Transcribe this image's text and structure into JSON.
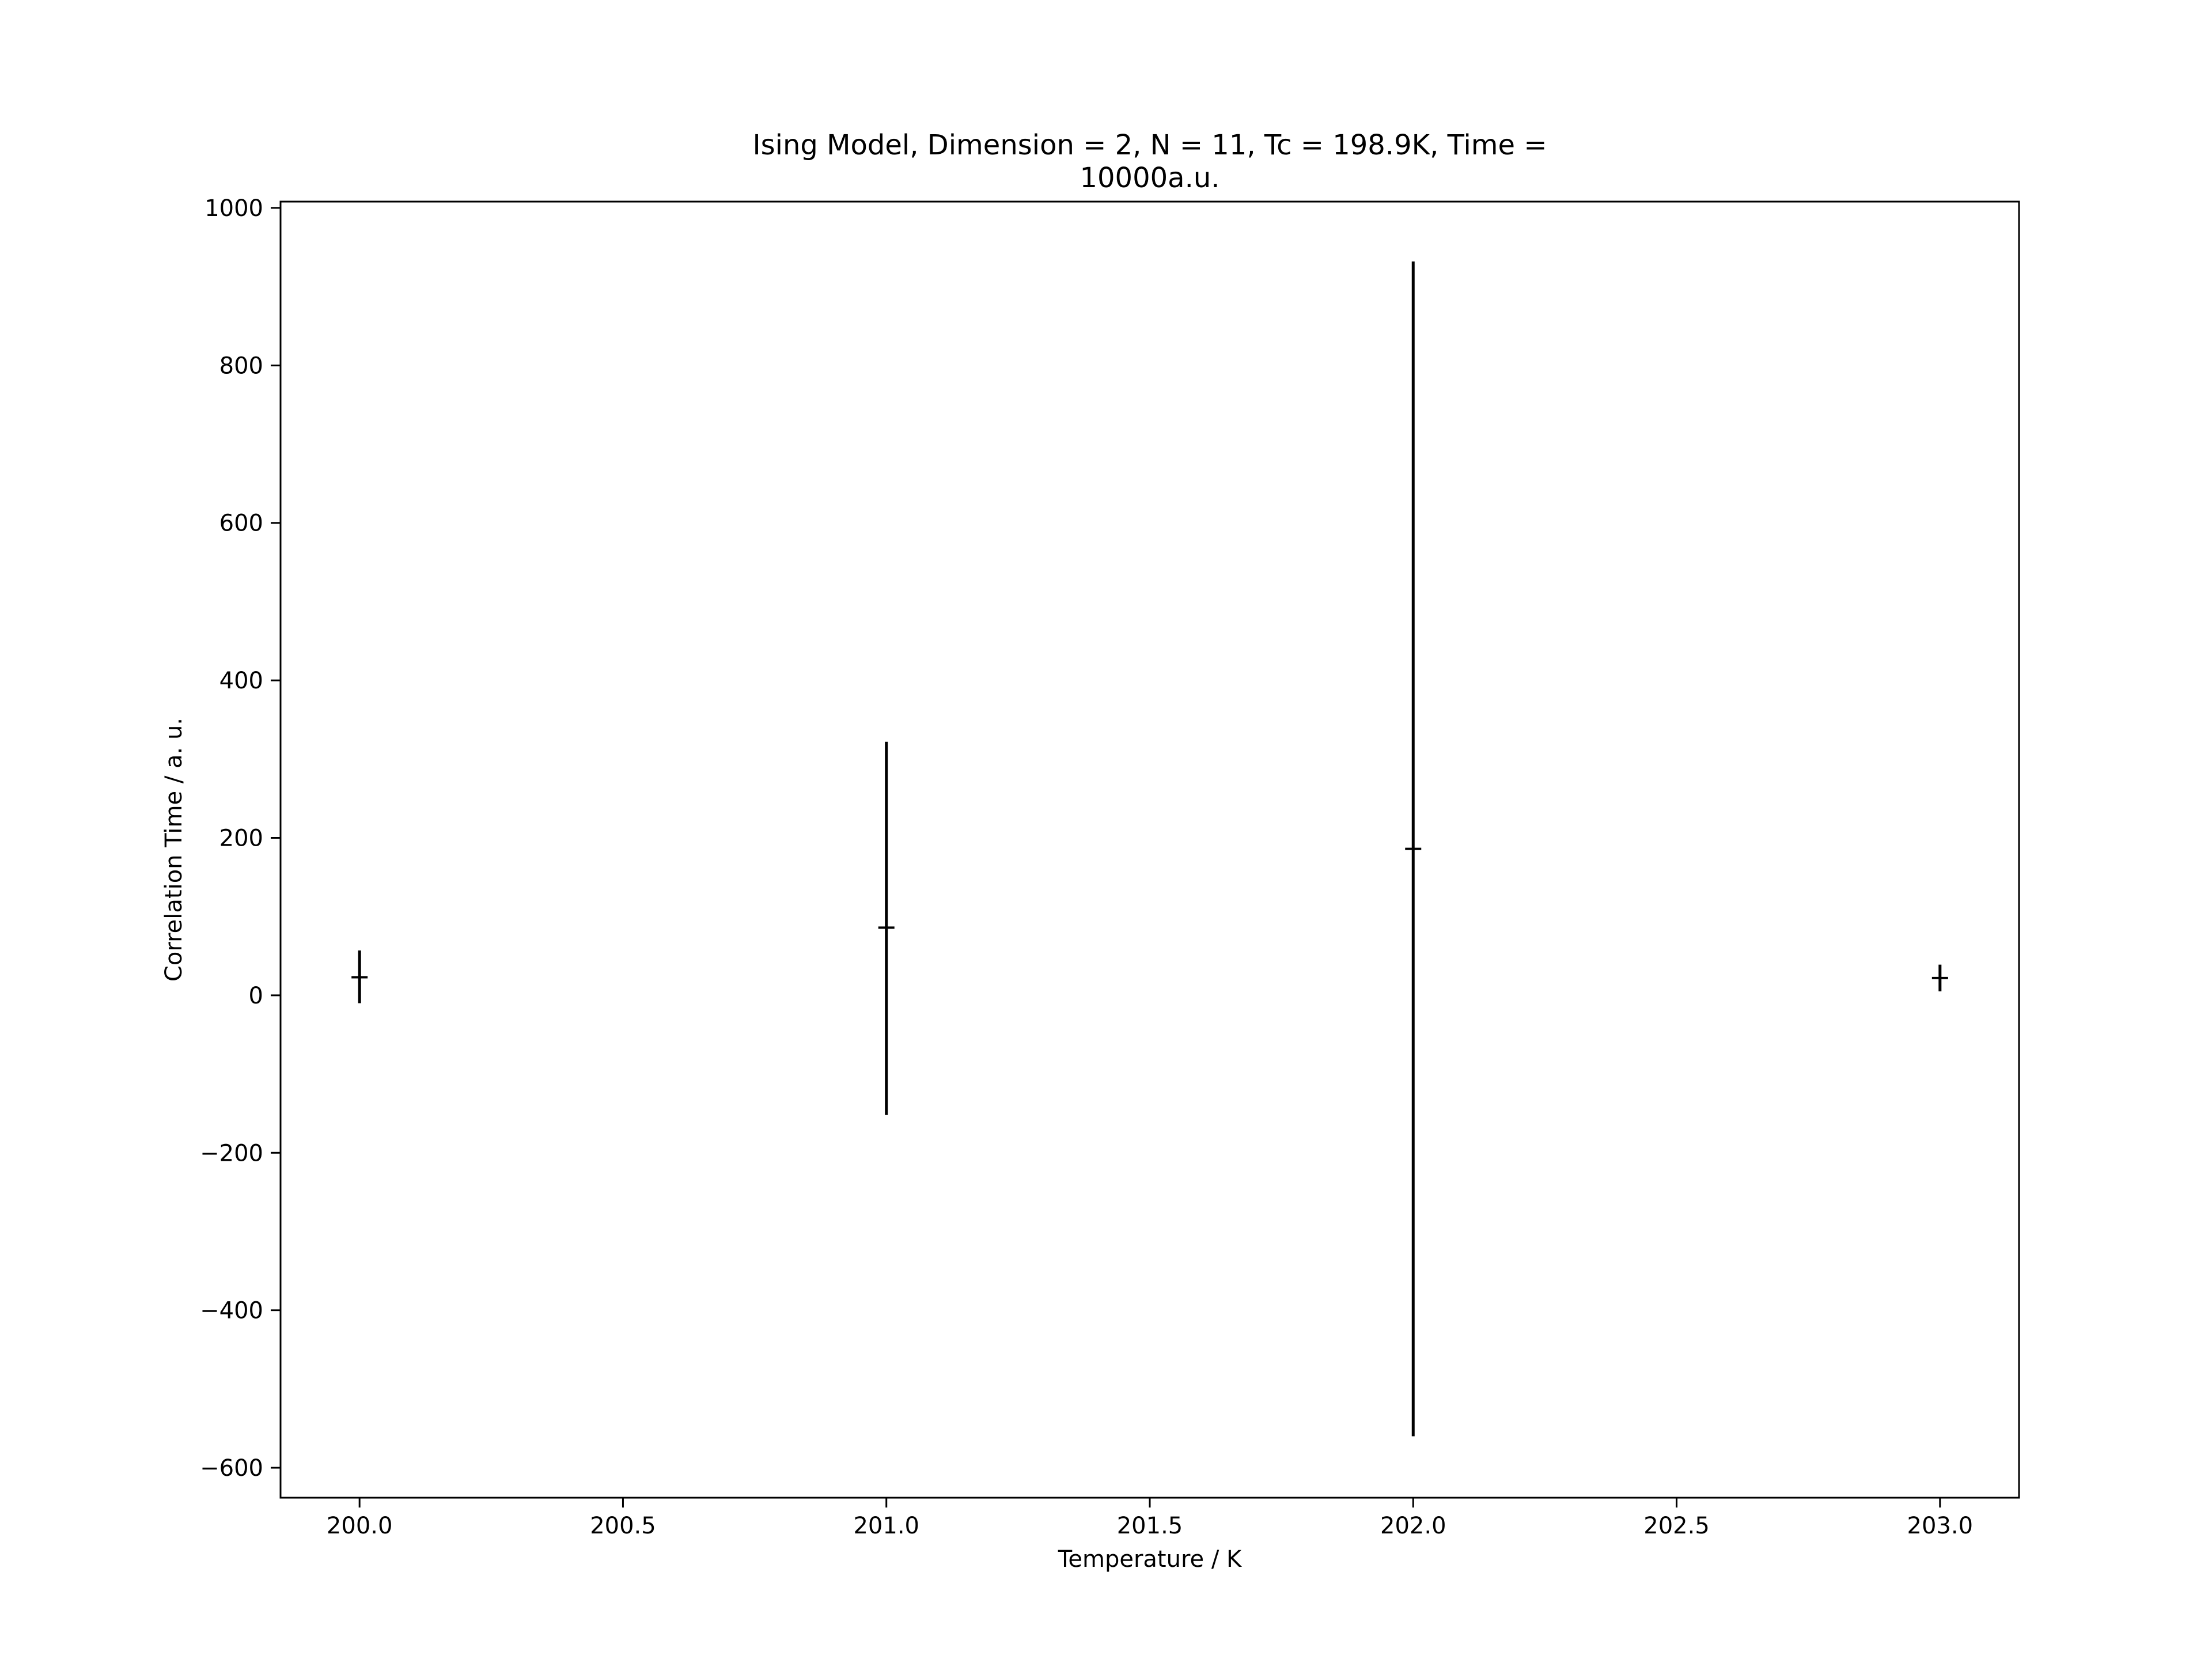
{
  "chart_data": {
    "type": "scatter",
    "title_lines": [
      "Ising Model, Dimension = 2, N = 11, Tc = 198.9K, Time =",
      "10000a.u."
    ],
    "xlabel": "Temperature / K",
    "ylabel": "Correlation Time / a. u.",
    "xlim": [
      199.85,
      203.15
    ],
    "ylim": [
      -638,
      1008
    ],
    "xticks": [
      200.0,
      200.5,
      201.0,
      201.5,
      202.0,
      202.5,
      203.0
    ],
    "xtick_labels": [
      "200.0",
      "200.5",
      "201.0",
      "201.5",
      "202.0",
      "202.5",
      "203.0"
    ],
    "yticks": [
      -600,
      -400,
      -200,
      0,
      200,
      400,
      600,
      800,
      1000
    ],
    "ytick_labels": [
      "−600",
      "−400",
      "−200",
      "0",
      "200",
      "400",
      "600",
      "800",
      "1000"
    ],
    "grid": false,
    "series": [
      {
        "marker": "horizontal-line",
        "color": "#000000",
        "points": [
          {
            "x": 200.0,
            "y": 23,
            "yerr_low": -10,
            "yerr_high": 57
          },
          {
            "x": 201.0,
            "y": 86,
            "yerr_low": -152,
            "yerr_high": 322
          },
          {
            "x": 202.0,
            "y": 186,
            "yerr_low": -560,
            "yerr_high": 932
          },
          {
            "x": 203.0,
            "y": 22,
            "yerr_low": 5,
            "yerr_high": 39
          }
        ]
      }
    ]
  }
}
